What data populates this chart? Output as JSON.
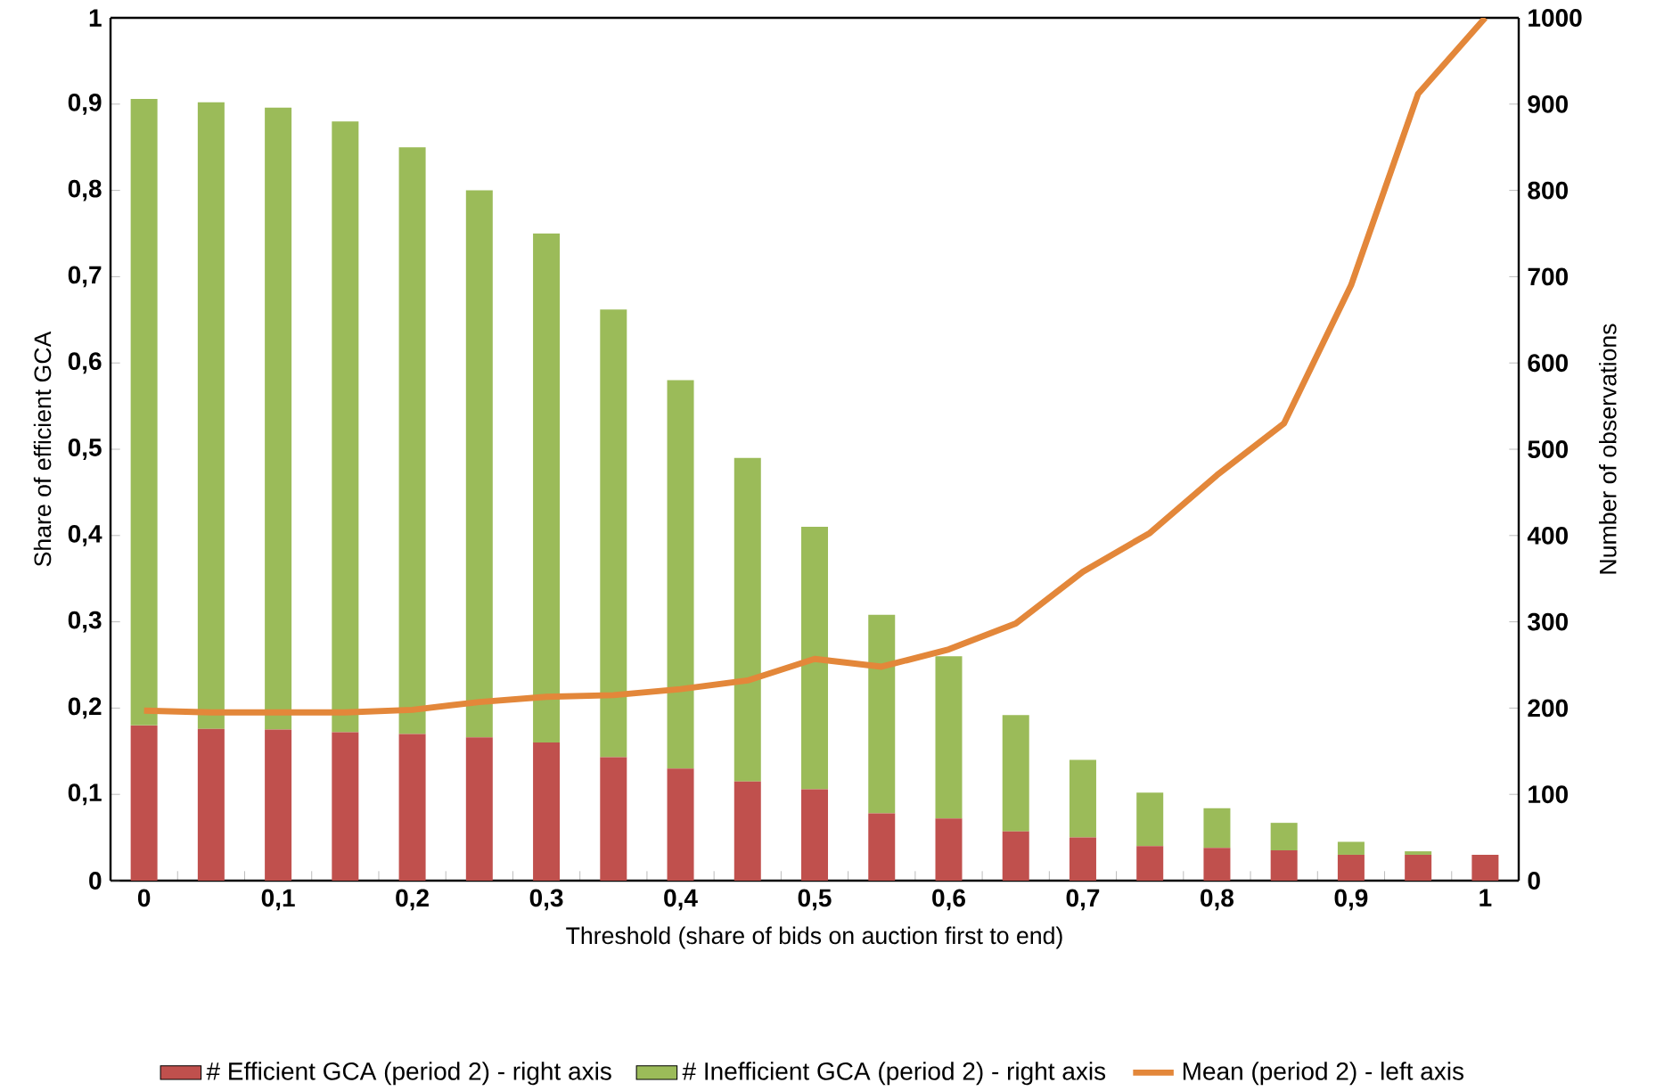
{
  "chart_data": {
    "type": "bar",
    "stacked": true,
    "legend": "bottom",
    "marker": "none",
    "xlabel": "Threshold (share of bids on auction first to end)",
    "ylabel": "Share of efficient GCA",
    "y2label": "Number of observations",
    "categories": [
      "0",
      null,
      "0,1",
      null,
      "0,2",
      null,
      "0,3",
      null,
      "0,4",
      null,
      "0,5",
      null,
      "0,6",
      null,
      "0,7",
      null,
      "0,8",
      null,
      "0,9",
      null,
      "1"
    ],
    "ylim": [
      0,
      1
    ],
    "yticks": [
      0,
      {
        "value": 0.1,
        "label": "0,1"
      },
      {
        "value": 0.2,
        "label": "0,2"
      },
      {
        "value": 0.3,
        "label": "0,3"
      },
      {
        "value": 0.4,
        "label": "0,4"
      },
      {
        "value": 0.5,
        "label": "0,5"
      },
      {
        "value": 0.6,
        "label": "0,6"
      },
      {
        "value": 0.7,
        "label": "0,7"
      },
      {
        "value": 0.8,
        "label": "0,8"
      },
      {
        "value": 0.9,
        "label": "0,9"
      },
      1
    ],
    "y2lim": [
      0,
      1000
    ],
    "y2ticks": [
      0,
      100,
      200,
      300,
      400,
      500,
      600,
      700,
      800,
      900,
      1000
    ],
    "series": [
      {
        "name": "# Efficient GCA (period 2) - right axis",
        "axis": "y2",
        "color": "#c0504d",
        "values": [
          180,
          176,
          175,
          172,
          170,
          166,
          160,
          143,
          130,
          115,
          106,
          78,
          72,
          57,
          50,
          40,
          38,
          35,
          30,
          30,
          30
        ]
      },
      {
        "name": "# Inefficient GCA (period 2) - right axis",
        "axis": "y2",
        "color": "#9bbb59",
        "values": [
          726,
          726,
          721,
          708,
          680,
          634,
          590,
          519,
          450,
          375,
          304,
          230,
          188,
          135,
          90,
          62,
          46,
          32,
          15,
          4,
          0
        ]
      },
      {
        "name": "Mean (period 2) - left axis",
        "type": "line",
        "color": "#e3873a",
        "values": [
          0.197,
          0.195,
          0.195,
          0.195,
          0.198,
          0.207,
          0.213,
          0.215,
          0.222,
          0.232,
          0.257,
          0.248,
          0.268,
          0.298,
          0.358,
          0.403,
          0.47,
          0.53,
          0.69,
          0.912,
          1.0
        ]
      }
    ]
  }
}
